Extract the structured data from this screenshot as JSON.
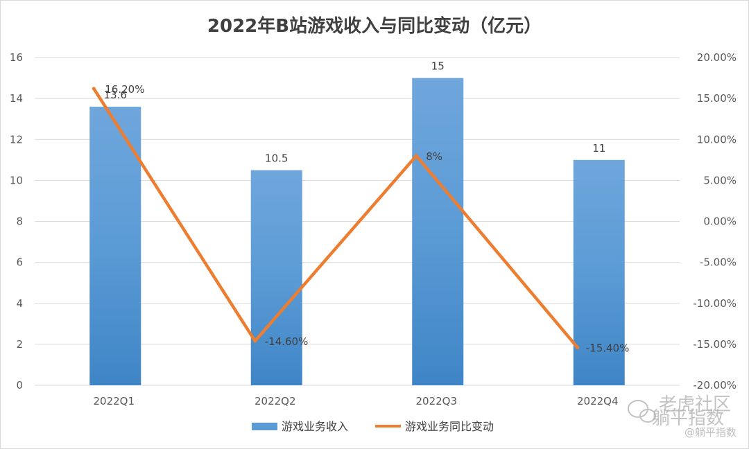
{
  "chart_data": {
    "type": "bar",
    "title": "2022年B站游戏收入与同比变动（亿元）",
    "categories": [
      "2022Q1",
      "2022Q2",
      "2022Q3",
      "2022Q4"
    ],
    "series": [
      {
        "name": "游戏业务收入",
        "kind": "bar",
        "axis": "left",
        "values": [
          13.6,
          10.5,
          15,
          11
        ],
        "labels": [
          "13.6",
          "10.5",
          "15",
          "11"
        ],
        "color": "#5b9bd5"
      },
      {
        "name": "游戏业务同比变动",
        "kind": "line",
        "axis": "right",
        "values": [
          16.2,
          -14.6,
          8,
          -15.4
        ],
        "labels": [
          "16.20%",
          "-14.60%",
          "8%",
          "-15.40%"
        ],
        "color": "#ed7d31"
      }
    ],
    "y_left": {
      "min": 0,
      "max": 16,
      "step": 2,
      "tick_labels": [
        "0",
        "2",
        "4",
        "6",
        "8",
        "10",
        "12",
        "14",
        "16"
      ]
    },
    "y_right": {
      "min": -20,
      "max": 20,
      "step": 5,
      "tick_labels": [
        "-20.00%",
        "-15.00%",
        "-10.00%",
        "-5.00%",
        "0.00%",
        "5.00%",
        "10.00%",
        "15.00%",
        "20.00%"
      ]
    },
    "grid": true,
    "legend": "bottom"
  },
  "watermark": {
    "main": "老虎社区",
    "line2": "躺平指数",
    "sub": "@躺平指数",
    "icon": "wechat-icon"
  }
}
